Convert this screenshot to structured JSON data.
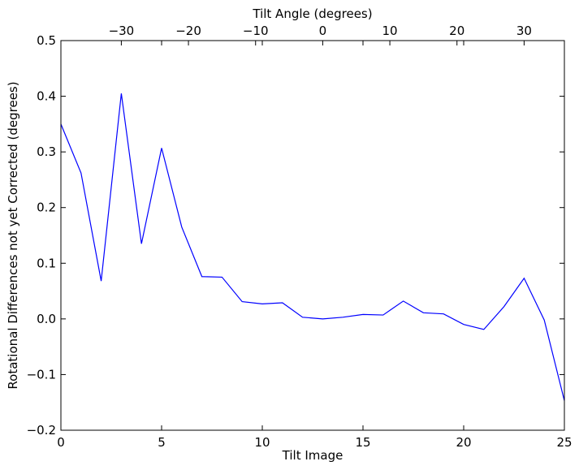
{
  "chart_data": {
    "type": "line",
    "xlabel": "Tilt Image",
    "ylabel": "Rotational Differences not yet Corrected (degrees)",
    "top_xlabel": "Tilt Angle (degrees)",
    "xlim": [
      0,
      25
    ],
    "ylim": [
      -0.2,
      0.5
    ],
    "top_xlim": [
      -39,
      36
    ],
    "grid": false,
    "line_color": "#0000ff",
    "x_ticks": [
      0,
      5,
      10,
      15,
      20,
      25
    ],
    "x_tick_labels": [
      "0",
      "5",
      "10",
      "15",
      "20",
      "25"
    ],
    "y_ticks": [
      -0.2,
      -0.1,
      0.0,
      0.1,
      0.2,
      0.3,
      0.4,
      0.5
    ],
    "y_tick_labels": [
      "−0.2",
      "−0.1",
      "0.0",
      "0.1",
      "0.2",
      "0.3",
      "0.4",
      "0.5"
    ],
    "top_ticks": [
      -30,
      -20,
      -10,
      0,
      10,
      20,
      30
    ],
    "top_tick_labels": [
      "−30",
      "−20",
      "−10",
      "0",
      "10",
      "20",
      "30"
    ],
    "series": [
      {
        "x": [
          0,
          1,
          2,
          3,
          4,
          5,
          6,
          7,
          8,
          9,
          10,
          11,
          12,
          13,
          14,
          15,
          16,
          17,
          18,
          19,
          20,
          21,
          22,
          23,
          24,
          25
        ],
        "values": [
          0.35,
          0.262,
          0.068,
          0.405,
          0.135,
          0.307,
          0.165,
          0.076,
          0.075,
          0.031,
          0.027,
          0.029,
          0.003,
          0.0,
          0.003,
          0.008,
          0.007,
          0.032,
          0.011,
          0.009,
          -0.01,
          -0.019,
          0.022,
          0.073,
          -0.002,
          -0.147
        ]
      }
    ]
  }
}
